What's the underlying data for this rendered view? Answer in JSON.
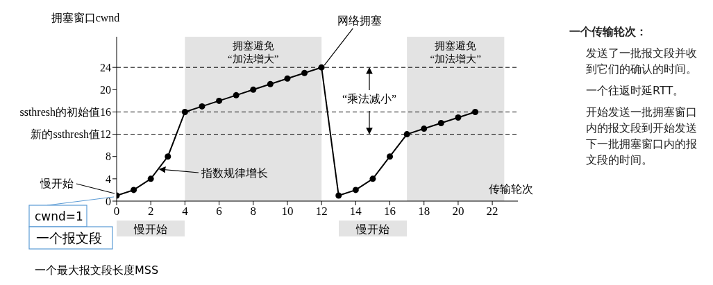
{
  "chart_data": {
    "type": "line",
    "xlabel": "传输轮次",
    "ylabel": "拥塞窗口cwnd",
    "x": [
      0,
      1,
      2,
      3,
      4,
      5,
      6,
      7,
      8,
      9,
      10,
      11,
      12,
      13,
      14,
      15,
      16,
      17,
      18,
      19,
      20,
      21
    ],
    "series": [
      {
        "color": "#000000",
        "values": [
          1,
          2,
          4,
          8,
          16,
          17,
          18,
          19,
          20,
          21,
          22,
          23,
          24,
          1,
          2,
          4,
          8,
          12,
          13,
          14,
          15,
          16
        ]
      }
    ],
    "xlim": [
      0,
      23.5
    ],
    "ylim": [
      0,
      29.5
    ],
    "xticks": [
      0,
      2,
      4,
      6,
      8,
      10,
      12,
      14,
      16,
      18,
      20,
      22
    ],
    "yticks": [
      0,
      4,
      8,
      {
        "value": 12,
        "label": "新的ssthresh值12"
      },
      {
        "value": 16,
        "label": "ssthresh的初始值16"
      },
      20,
      24
    ],
    "ref_lines": [
      {
        "axis": "y",
        "value": 24,
        "line_style": "dashed"
      },
      {
        "axis": "y",
        "value": 16,
        "line_style": "dashed"
      },
      {
        "axis": "y",
        "value": 12,
        "line_style": "dashed"
      }
    ],
    "bands": [
      {
        "axis": "x",
        "from": 4,
        "to": 12,
        "label": "拥塞避免\n“加法增大”",
        "color": "#e3e3e3"
      },
      {
        "axis": "x",
        "from": 17,
        "to": 22.7,
        "label": "拥塞避免\n“加法增大”",
        "color": "#e3e3e3"
      }
    ],
    "annotations": [
      {
        "text": "慢开始",
        "x": 0,
        "y": 1
      },
      "指数规律增长",
      {
        "text": "网络拥塞",
        "x": 12,
        "y": 24
      },
      {
        "text": "“乘法减小”",
        "x": 14.8,
        "y": 12
      },
      {
        "text": "cwnd=1",
        "x": 0,
        "y": 1
      },
      "一个报文段",
      "一个最大报文段长度MSS",
      "慢开始",
      "慢开始",
      "一个传输轮次：",
      "发送了一批报文段并收到它们的确认的时间。",
      "一个往返时延RTT。",
      "开始发送一批拥塞窗口内的报文段到开始发送下一批拥塞窗口内的报文段的时间。"
    ],
    "marker": "circle",
    "line_style": "solid",
    "grid": false,
    "legend": false
  }
}
